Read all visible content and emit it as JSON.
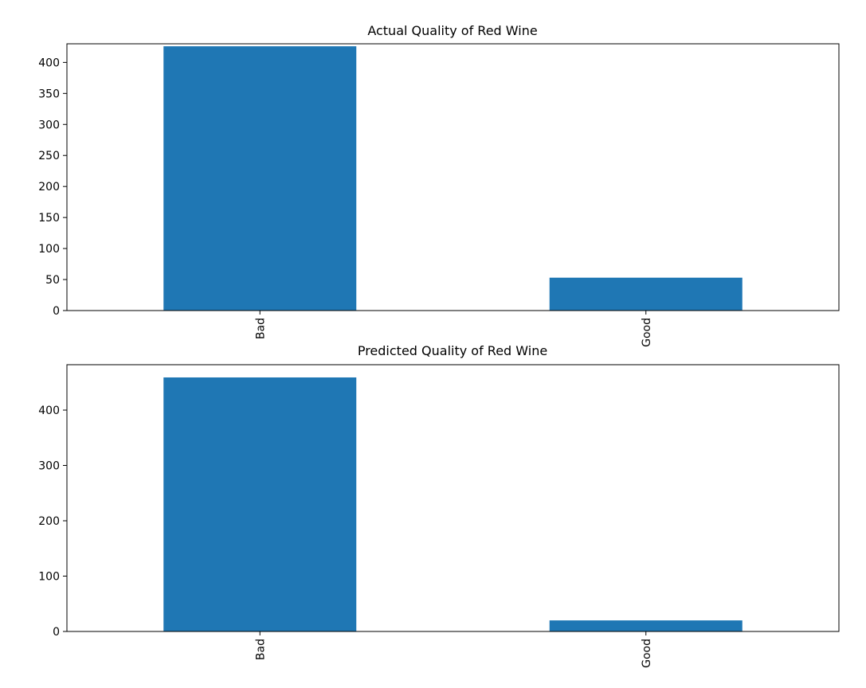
{
  "chart_data": [
    {
      "type": "bar",
      "title": "Actual Quality of Red Wine",
      "categories": [
        "Bad",
        "Good"
      ],
      "values": [
        426,
        53
      ],
      "xlabel": "",
      "ylabel": "",
      "ylim": [
        0,
        430
      ],
      "yticks": [
        0,
        50,
        100,
        150,
        200,
        250,
        300,
        350,
        400
      ],
      "grid": false,
      "bar_color": "#1f77b4"
    },
    {
      "type": "bar",
      "title": "Predicted Quality of Red Wine",
      "categories": [
        "Bad",
        "Good"
      ],
      "values": [
        459,
        20
      ],
      "xlabel": "",
      "ylabel": "",
      "ylim": [
        0,
        482
      ],
      "yticks": [
        0,
        100,
        200,
        300,
        400
      ],
      "grid": false,
      "bar_color": "#1f77b4"
    }
  ]
}
